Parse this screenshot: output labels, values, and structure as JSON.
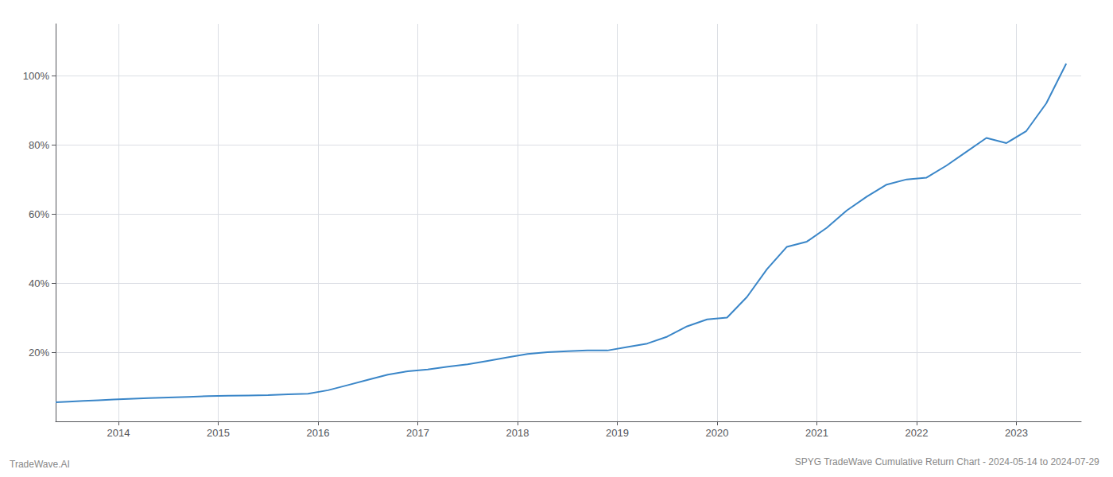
{
  "chart_data": {
    "type": "line",
    "title": "SPYG TradeWave Cumulative Return Chart - 2024-05-14 to 2024-07-29",
    "annotations": [
      "TradeWave.AI"
    ],
    "color": "#3a86c8",
    "x": [
      2013.37,
      2013.5,
      2013.65,
      2013.8,
      2013.95,
      2014.1,
      2014.3,
      2014.5,
      2014.7,
      2014.9,
      2015.1,
      2015.3,
      2015.5,
      2015.7,
      2015.9,
      2016.1,
      2016.3,
      2016.5,
      2016.7,
      2016.9,
      2017.1,
      2017.3,
      2017.5,
      2017.7,
      2017.9,
      2018.1,
      2018.3,
      2018.5,
      2018.7,
      2018.9,
      2019.1,
      2019.3,
      2019.5,
      2019.7,
      2019.9,
      2020.1,
      2020.3,
      2020.5,
      2020.7,
      2020.9,
      2021.1,
      2021.3,
      2021.5,
      2021.7,
      2021.9,
      2022.1,
      2022.3,
      2022.5,
      2022.7,
      2022.9,
      2023.1,
      2023.3,
      2023.5
    ],
    "values": [
      5.5,
      5.7,
      5.9,
      6.1,
      6.3,
      6.5,
      6.7,
      6.9,
      7.1,
      7.3,
      7.4,
      7.5,
      7.6,
      7.8,
      8.0,
      9.0,
      10.5,
      12.0,
      13.5,
      14.5,
      15.0,
      15.8,
      16.5,
      17.5,
      18.5,
      19.5,
      20.0,
      20.3,
      20.5,
      20.5,
      21.5,
      22.5,
      24.5,
      27.5,
      29.5,
      30.0,
      36.0,
      44.0,
      50.5,
      52.0,
      56.0,
      61.0,
      65.0,
      68.5,
      70.0,
      70.5,
      74.0,
      78.0,
      82.0,
      80.5,
      84.0,
      92.0,
      103.5
    ],
    "xlim": [
      2013.37,
      2023.65
    ],
    "xticks": [
      2014,
      2015,
      2016,
      2017,
      2018,
      2019,
      2020,
      2021,
      2022,
      2023
    ],
    "ylim": [
      0,
      115
    ],
    "yticks": [
      {
        "value": 20,
        "label": "20%"
      },
      {
        "value": 40,
        "label": "40%"
      },
      {
        "value": 60,
        "label": "60%"
      },
      {
        "value": 80,
        "label": "80%"
      },
      {
        "value": 100,
        "label": "100%"
      }
    ],
    "grid": true
  }
}
